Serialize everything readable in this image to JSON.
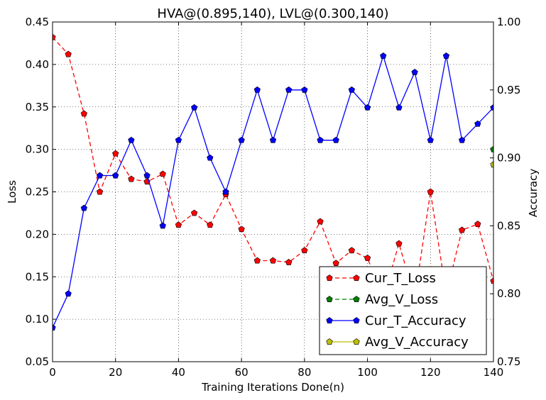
{
  "chart_data": {
    "type": "line",
    "title": "HVA@(0.895,140), LVL@(0.300,140)",
    "xlabel": "Training Iterations Done(n)",
    "ylabel": "Loss",
    "y2label": "Accuracy",
    "xlim": [
      0,
      140
    ],
    "ylim": [
      0.05,
      0.45
    ],
    "y2lim": [
      0.75,
      1.0
    ],
    "xticks": [
      0,
      20,
      40,
      60,
      80,
      100,
      120,
      140
    ],
    "yticks": [
      0.05,
      0.1,
      0.15,
      0.2,
      0.25,
      0.3,
      0.35,
      0.4,
      0.45
    ],
    "y2ticks": [
      0.75,
      0.8,
      0.85,
      0.9,
      0.95,
      1.0
    ],
    "grid": true,
    "legend_position": "bottom-right",
    "series": [
      {
        "name": "Cur_T_Loss",
        "axis": "left",
        "color": "#ff0000",
        "line_style": "dashed",
        "x": [
          0,
          5,
          10,
          15,
          20,
          25,
          30,
          35,
          40,
          45,
          50,
          55,
          60,
          65,
          70,
          75,
          80,
          85,
          90,
          95,
          100,
          105,
          110,
          115,
          120,
          125,
          130,
          135,
          140
        ],
        "values": [
          0.432,
          0.412,
          0.342,
          0.25,
          0.295,
          0.265,
          0.262,
          0.271,
          0.211,
          0.225,
          0.211,
          0.247,
          0.206,
          0.169,
          0.169,
          0.167,
          0.181,
          0.215,
          0.166,
          0.181,
          0.172,
          0.125,
          0.189,
          0.125,
          0.25,
          0.13,
          0.205,
          0.212,
          0.145
        ]
      },
      {
        "name": "Avg_V_Loss",
        "axis": "left",
        "color": "#008000",
        "line_style": "dashed",
        "x": [
          140
        ],
        "values": [
          0.3
        ]
      },
      {
        "name": "Cur_T_Accuracy",
        "axis": "right",
        "color": "#0000ff",
        "line_style": "solid",
        "x": [
          0,
          5,
          10,
          15,
          20,
          25,
          30,
          35,
          40,
          45,
          50,
          55,
          60,
          65,
          70,
          75,
          80,
          85,
          90,
          95,
          100,
          105,
          110,
          115,
          120,
          125,
          130,
          135,
          140
        ],
        "values": [
          0.775,
          0.8,
          0.863,
          0.887,
          0.887,
          0.913,
          0.887,
          0.85,
          0.913,
          0.937,
          0.9,
          0.875,
          0.913,
          0.95,
          0.913,
          0.95,
          0.95,
          0.913,
          0.913,
          0.95,
          0.937,
          0.975,
          0.937,
          0.963,
          0.913,
          0.975,
          0.913,
          0.925,
          0.937
        ]
      },
      {
        "name": "Avg_V_Accuracy",
        "axis": "right",
        "color": "#bfbf00",
        "line_style": "solid",
        "x": [
          140
        ],
        "values": [
          0.895
        ]
      }
    ]
  }
}
